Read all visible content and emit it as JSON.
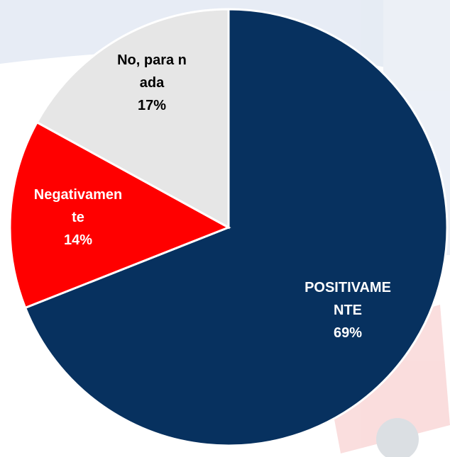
{
  "chart_data": {
    "type": "pie",
    "categories": [
      "POSITIVAMENTE",
      "Negativamente",
      "No, para nada"
    ],
    "values": [
      69,
      14,
      17
    ],
    "value_labels": [
      "69%",
      "14%",
      "17%"
    ],
    "colors": [
      "#07315f",
      "#ff0000",
      "#e6e6e6"
    ],
    "label_colors": [
      "#ffffff",
      "#ffffff",
      "#000000"
    ]
  }
}
